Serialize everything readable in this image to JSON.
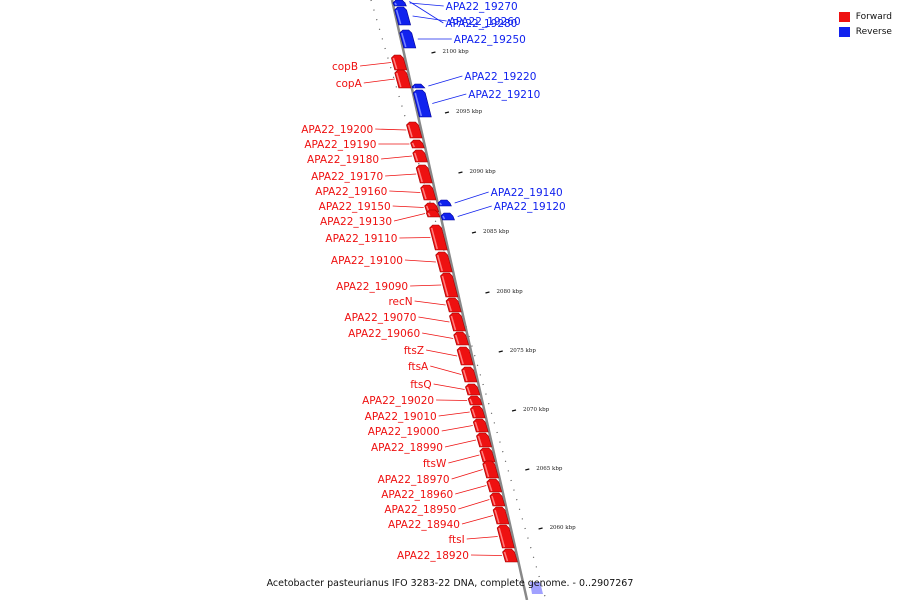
{
  "colors": {
    "forward": "#ee1111",
    "reverse": "#1122ee",
    "backbone": "#888888"
  },
  "legend": {
    "forward": "Forward",
    "reverse": "Reverse"
  },
  "caption": "Acetobacter pasteurianus IFO 3283-22 DNA, complete genome. - 0..2907267",
  "ticks": [
    "2100 kbp",
    "2095 kbp",
    "2090 kbp",
    "2085 kbp",
    "2080 kbp",
    "2075 kbp",
    "2070 kbp",
    "2065 kbp",
    "2060 kbp"
  ],
  "genes": [
    {
      "label": "APA22_19280",
      "strand": "reverse"
    },
    {
      "label": "APA22_19270",
      "strand": "reverse"
    },
    {
      "label": "APA22_19260",
      "strand": "reverse"
    },
    {
      "label": "APA22_19250",
      "strand": "reverse"
    },
    {
      "label": "copB",
      "strand": "forward"
    },
    {
      "label": "copA",
      "strand": "forward"
    },
    {
      "label": "APA22_19220",
      "strand": "reverse"
    },
    {
      "label": "APA22_19210",
      "strand": "reverse"
    },
    {
      "label": "APA22_19200",
      "strand": "forward"
    },
    {
      "label": "APA22_19190",
      "strand": "forward"
    },
    {
      "label": "APA22_19180",
      "strand": "forward"
    },
    {
      "label": "APA22_19170",
      "strand": "forward"
    },
    {
      "label": "APA22_19160",
      "strand": "forward"
    },
    {
      "label": "APA22_19150",
      "strand": "forward"
    },
    {
      "label": "APA22_19140",
      "strand": "reverse"
    },
    {
      "label": "APA22_19130",
      "strand": "forward"
    },
    {
      "label": "APA22_19120",
      "strand": "reverse"
    },
    {
      "label": "APA22_19110",
      "strand": "forward"
    },
    {
      "label": "APA22_19100",
      "strand": "forward"
    },
    {
      "label": "APA22_19090",
      "strand": "forward"
    },
    {
      "label": "recN",
      "strand": "forward"
    },
    {
      "label": "APA22_19070",
      "strand": "forward"
    },
    {
      "label": "APA22_19060",
      "strand": "forward"
    },
    {
      "label": "ftsZ",
      "strand": "forward"
    },
    {
      "label": "ftsA",
      "strand": "forward"
    },
    {
      "label": "ftsQ",
      "strand": "forward"
    },
    {
      "label": "APA22_19020",
      "strand": "forward"
    },
    {
      "label": "APA22_19010",
      "strand": "forward"
    },
    {
      "label": "APA22_19000",
      "strand": "forward"
    },
    {
      "label": "APA22_18990",
      "strand": "forward"
    },
    {
      "label": "ftsW",
      "strand": "forward"
    },
    {
      "label": "APA22_18970",
      "strand": "forward"
    },
    {
      "label": "APA22_18960",
      "strand": "forward"
    },
    {
      "label": "APA22_18950",
      "strand": "forward"
    },
    {
      "label": "APA22_18940",
      "strand": "forward"
    },
    {
      "label": "ftsI",
      "strand": "forward"
    },
    {
      "label": "APA22_18920",
      "strand": "forward"
    }
  ]
}
